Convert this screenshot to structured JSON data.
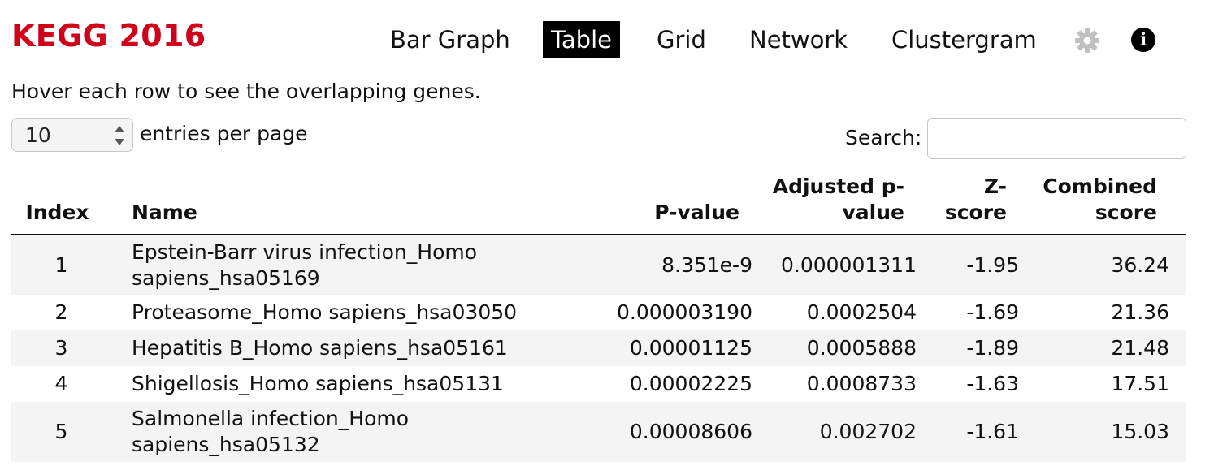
{
  "title": "KEGG 2016",
  "nav": {
    "bar_graph": "Bar Graph",
    "table": "Table",
    "grid": "Grid",
    "network": "Network",
    "clustergram": "Clustergram"
  },
  "icons": {
    "settings": "gear-icon",
    "info": "info-icon"
  },
  "colors": {
    "title": "#d0021b",
    "active_tab_bg": "#000000",
    "gear": "#c0c0c0"
  },
  "hint": "Hover each row to see the overlapping genes.",
  "entries": {
    "selected": "10",
    "label": "entries per page"
  },
  "search": {
    "label": "Search:",
    "value": ""
  },
  "table": {
    "headers": {
      "index": "Index",
      "name": "Name",
      "pvalue": "P-value",
      "adj_line1": "Adjusted p-",
      "adj_line2": "value",
      "z_line1": "Z-",
      "z_line2": "score",
      "comb_line1": "Combined",
      "comb_line2": "score"
    },
    "rows": [
      {
        "index": "1",
        "name_line1": "Epstein-Barr virus infection_Homo",
        "name_line2": "sapiens_hsa05169",
        "pvalue": "8.351e-9",
        "adjusted": "0.000001311",
        "zscore": "-1.95",
        "combined": "36.24"
      },
      {
        "index": "2",
        "name_line1": "Proteasome_Homo sapiens_hsa03050",
        "name_line2": "",
        "pvalue": "0.000003190",
        "adjusted": "0.0002504",
        "zscore": "-1.69",
        "combined": "21.36"
      },
      {
        "index": "3",
        "name_line1": "Hepatitis B_Homo sapiens_hsa05161",
        "name_line2": "",
        "pvalue": "0.00001125",
        "adjusted": "0.0005888",
        "zscore": "-1.89",
        "combined": "21.48"
      },
      {
        "index": "4",
        "name_line1": "Shigellosis_Homo sapiens_hsa05131",
        "name_line2": "",
        "pvalue": "0.00002225",
        "adjusted": "0.0008733",
        "zscore": "-1.63",
        "combined": "17.51"
      },
      {
        "index": "5",
        "name_line1": "Salmonella infection_Homo",
        "name_line2": "sapiens_hsa05132",
        "pvalue": "0.00008606",
        "adjusted": "0.002702",
        "zscore": "-1.61",
        "combined": "15.03"
      }
    ]
  }
}
